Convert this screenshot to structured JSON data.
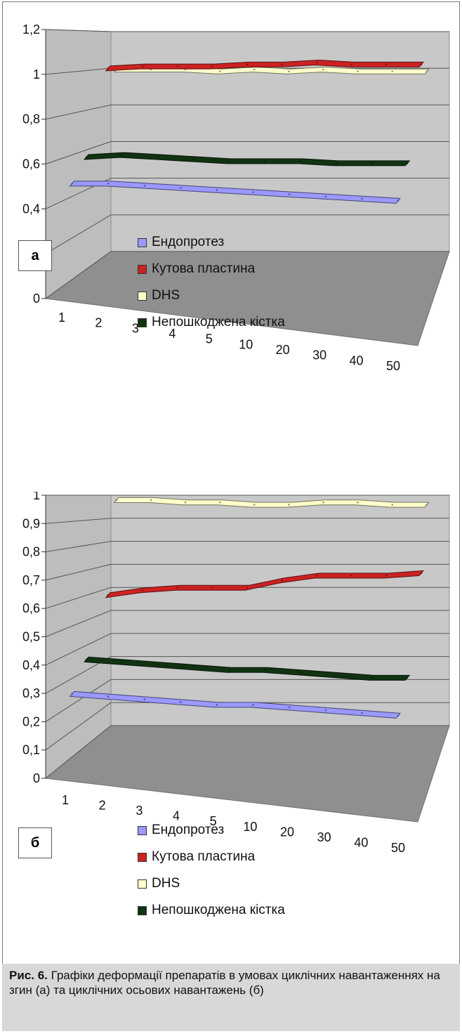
{
  "chart_data": [
    {
      "type": "line",
      "panel_label": "а",
      "categories": [
        "1",
        "2",
        "3",
        "4",
        "5",
        "10",
        "20",
        "30",
        "40",
        "50"
      ],
      "y_ticks": [
        "0",
        "0,2",
        "0,4",
        "0,6",
        "0,8",
        "1",
        "1,2"
      ],
      "ylim": [
        0,
        1.2
      ],
      "grid": true,
      "legend_position": "bottom",
      "series": [
        {
          "name": "Ендопротез",
          "color": "#9999ff",
          "values": [
            0.5,
            0.5,
            0.49,
            0.48,
            0.47,
            0.46,
            0.45,
            0.44,
            0.43,
            0.42
          ]
        },
        {
          "name": "Кутова пластина",
          "color": "#cc2222",
          "values": [
            1.02,
            1.03,
            1.03,
            1.03,
            1.04,
            1.04,
            1.05,
            1.04,
            1.04,
            1.04
          ]
        },
        {
          "name": "DHS",
          "color": "#ffffcc",
          "values": [
            1.01,
            1.01,
            1.01,
            1.0,
            1.01,
            1.0,
            1.01,
            1.0,
            1.0,
            1.0
          ]
        },
        {
          "name": "Непошкоджена кістка",
          "color": "#113311",
          "values": [
            0.6,
            0.61,
            0.6,
            0.59,
            0.58,
            0.58,
            0.58,
            0.57,
            0.57,
            0.57
          ]
        }
      ]
    },
    {
      "type": "line",
      "panel_label": "б",
      "categories": [
        "1",
        "2",
        "3",
        "4",
        "5",
        "10",
        "20",
        "30",
        "40",
        "50"
      ],
      "y_ticks": [
        "0",
        "0,1",
        "0,2",
        "0,3",
        "0,4",
        "0,5",
        "0,6",
        "0,7",
        "0,8",
        "0,9",
        "1"
      ],
      "ylim": [
        0,
        1
      ],
      "grid": true,
      "legend_position": "bottom",
      "series": [
        {
          "name": "Ендопротез",
          "color": "#9999ff",
          "values": [
            0.28,
            0.27,
            0.26,
            0.25,
            0.24,
            0.24,
            0.23,
            0.22,
            0.21,
            0.2
          ]
        },
        {
          "name": "Кутова пластина",
          "color": "#cc2222",
          "values": [
            0.6,
            0.62,
            0.63,
            0.63,
            0.63,
            0.66,
            0.68,
            0.68,
            0.68,
            0.69
          ]
        },
        {
          "name": "DHS",
          "color": "#ffffcc",
          "values": [
            0.99,
            0.99,
            0.98,
            0.98,
            0.97,
            0.97,
            0.98,
            0.98,
            0.97,
            0.97
          ]
        },
        {
          "name": "Непошкоджена кістка",
          "color": "#113311",
          "values": [
            0.38,
            0.37,
            0.36,
            0.35,
            0.34,
            0.34,
            0.33,
            0.32,
            0.31,
            0.31
          ]
        }
      ]
    }
  ],
  "caption": {
    "label": "Рис. 6.",
    "text": " Графіки деформації препаратів в умовах циклічних навантаженнях на згин (а) та циклічних осьових навантажень (б)"
  }
}
